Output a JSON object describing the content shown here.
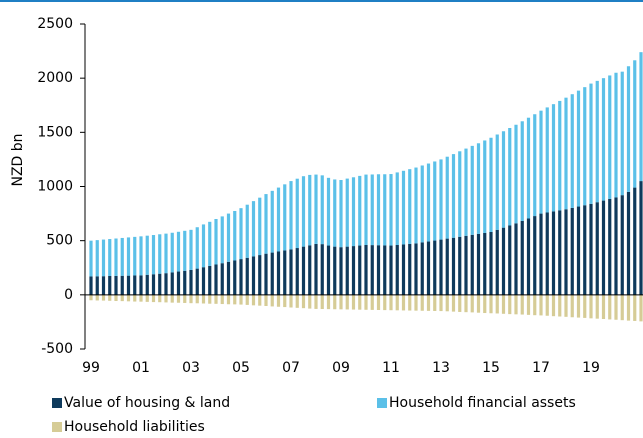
{
  "chart_data": {
    "type": "stacked_bar",
    "y_label": "NZD bn",
    "categories": [
      "99",
      null,
      null,
      null,
      null,
      null,
      null,
      null,
      "01",
      null,
      null,
      null,
      null,
      null,
      null,
      null,
      "03",
      null,
      null,
      null,
      null,
      null,
      null,
      null,
      "05",
      null,
      null,
      null,
      null,
      null,
      null,
      null,
      "07",
      null,
      null,
      null,
      null,
      null,
      null,
      null,
      "09",
      null,
      null,
      null,
      null,
      null,
      null,
      null,
      "11",
      null,
      null,
      null,
      null,
      null,
      null,
      null,
      "13",
      null,
      null,
      null,
      null,
      null,
      null,
      null,
      "15",
      null,
      null,
      null,
      null,
      null,
      null,
      null,
      "17",
      null,
      null,
      null,
      null,
      null,
      null,
      null,
      "19",
      null,
      null,
      null,
      null,
      null,
      null,
      null,
      null
    ],
    "series": [
      {
        "name": "Value of housing & land",
        "color": "#0e3a5c",
        "values": [
          170,
          171,
          172,
          174,
          175,
          176,
          177,
          179,
          180,
          185,
          190,
          195,
          200,
          207,
          215,
          222,
          230,
          242,
          255,
          267,
          280,
          292,
          305,
          317,
          330,
          342,
          355,
          367,
          380,
          390,
          400,
          410,
          420,
          432,
          445,
          457,
          470,
          468,
          455,
          445,
          440,
          445,
          450,
          455,
          460,
          459,
          458,
          456,
          455,
          460,
          465,
          470,
          475,
          484,
          492,
          501,
          510,
          519,
          527,
          536,
          545,
          554,
          562,
          571,
          580,
          600,
          620,
          640,
          660,
          682,
          705,
          727,
          750,
          760,
          770,
          780,
          790,
          802,
          815,
          827,
          840,
          855,
          870,
          885,
          900,
          920,
          950,
          990,
          1050
        ]
      },
      {
        "name": "Household financial assets",
        "color": "#5bc0e8",
        "values": [
          330,
          334,
          338,
          341,
          345,
          349,
          353,
          356,
          360,
          361,
          362,
          364,
          365,
          366,
          367,
          369,
          370,
          382,
          395,
          407,
          420,
          432,
          445,
          457,
          470,
          490,
          510,
          530,
          550,
          570,
          590,
          610,
          630,
          640,
          650,
          650,
          640,
          635,
          625,
          620,
          620,
          628,
          635,
          643,
          650,
          652,
          655,
          657,
          660,
          670,
          680,
          690,
          700,
          710,
          720,
          730,
          740,
          756,
          772,
          789,
          805,
          821,
          837,
          854,
          870,
          880,
          890,
          900,
          910,
          920,
          930,
          940,
          950,
          970,
          990,
          1010,
          1030,
          1050,
          1070,
          1090,
          1110,
          1120,
          1130,
          1140,
          1150,
          1140,
          1160,
          1175,
          1190
        ]
      },
      {
        "name": "Household liabilities",
        "color": "#d6cc96",
        "values": [
          -50,
          -52,
          -53,
          -55,
          -57,
          -58,
          -60,
          -62,
          -63,
          -65,
          -67,
          -68,
          -70,
          -72,
          -73,
          -75,
          -77,
          -78,
          -80,
          -82,
          -83,
          -85,
          -87,
          -88,
          -90,
          -93,
          -97,
          -100,
          -103,
          -107,
          -110,
          -113,
          -117,
          -120,
          -123,
          -127,
          -130,
          -131,
          -132,
          -133,
          -134,
          -135,
          -136,
          -137,
          -138,
          -139,
          -140,
          -141,
          -142,
          -143,
          -144,
          -145,
          -146,
          -147,
          -148,
          -149,
          -150,
          -152,
          -155,
          -158,
          -160,
          -162,
          -165,
          -168,
          -170,
          -172,
          -175,
          -178,
          -180,
          -182,
          -185,
          -188,
          -190,
          -193,
          -197,
          -200,
          -203,
          -207,
          -210,
          -213,
          -217,
          -220,
          -223,
          -227,
          -230,
          -234,
          -238,
          -241,
          -245
        ]
      }
    ],
    "ylim": [
      -500,
      2500
    ],
    "yticks": [
      -500,
      0,
      500,
      1000,
      1500,
      2000,
      2500
    ],
    "grid": false
  }
}
